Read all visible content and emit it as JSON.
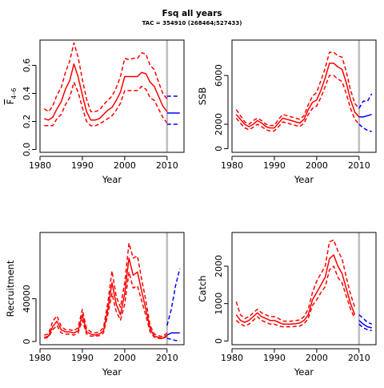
{
  "title": "Fsq all years",
  "subtitle": "TAC = 354910 (268464;527433)",
  "colors": {
    "historic": "#ff0000",
    "forecast": "#0000ff",
    "divider": "#bebebe"
  },
  "chart_data": [
    {
      "type": "line",
      "id": "f",
      "ylabel_main": "F",
      "ylabel_sub": "4–6",
      "xlabel": "Year",
      "xlim": [
        1980,
        2014
      ],
      "ylim": [
        -0.02,
        0.78
      ],
      "xticks": [
        1980,
        1990,
        2000,
        2010
      ],
      "yticks": [
        0,
        0.2,
        0.4,
        0.6
      ],
      "ytick_labels": [
        "0.0",
        "0.2",
        "0.4",
        "0.6"
      ],
      "divider_year": 2010,
      "historic": {
        "x": [
          1981,
          1982,
          1983,
          1984,
          1985,
          1986,
          1987,
          1988,
          1989,
          1990,
          1991,
          1992,
          1993,
          1994,
          1995,
          1996,
          1997,
          1998,
          1999,
          2000,
          2001,
          2002,
          2003,
          2004,
          2005,
          2006,
          2007,
          2008,
          2009,
          2010
        ],
        "mid": [
          0.22,
          0.21,
          0.23,
          0.29,
          0.34,
          0.43,
          0.49,
          0.61,
          0.52,
          0.39,
          0.27,
          0.21,
          0.21,
          0.22,
          0.25,
          0.28,
          0.3,
          0.35,
          0.41,
          0.52,
          0.52,
          0.52,
          0.52,
          0.55,
          0.54,
          0.48,
          0.45,
          0.38,
          0.31,
          0.27
        ],
        "lo": [
          0.17,
          0.17,
          0.17,
          0.22,
          0.25,
          0.32,
          0.37,
          0.48,
          0.41,
          0.3,
          0.2,
          0.17,
          0.17,
          0.18,
          0.2,
          0.22,
          0.24,
          0.28,
          0.33,
          0.42,
          0.42,
          0.42,
          0.42,
          0.45,
          0.43,
          0.37,
          0.35,
          0.29,
          0.23,
          0.19
        ],
        "hi": [
          0.29,
          0.27,
          0.31,
          0.39,
          0.44,
          0.55,
          0.63,
          0.76,
          0.66,
          0.5,
          0.36,
          0.27,
          0.27,
          0.28,
          0.32,
          0.35,
          0.38,
          0.44,
          0.52,
          0.65,
          0.64,
          0.65,
          0.65,
          0.69,
          0.68,
          0.6,
          0.57,
          0.48,
          0.4,
          0.36
        ]
      },
      "forecast": {
        "x": [
          2010,
          2011,
          2012,
          2013
        ],
        "mid": [
          0.26,
          0.26,
          0.26,
          0.26
        ],
        "lo": [
          0.18,
          0.18,
          0.18,
          0.18
        ],
        "hi": [
          0.38,
          0.38,
          0.38,
          0.38
        ]
      }
    },
    {
      "type": "line",
      "id": "ssb",
      "ylabel_main": "SSB",
      "ylabel_sub": "",
      "xlabel": "Year",
      "xlim": [
        1980,
        2014
      ],
      "ylim": [
        -300,
        8900
      ],
      "xticks": [
        1980,
        1990,
        2000,
        2010
      ],
      "yticks": [
        0,
        2000,
        6000
      ],
      "ytick_labels": [
        "0",
        "2000",
        "6000"
      ],
      "divider_year": 2010,
      "historic": {
        "x": [
          1981,
          1982,
          1983,
          1984,
          1985,
          1986,
          1987,
          1988,
          1989,
          1990,
          1991,
          1992,
          1993,
          1994,
          1995,
          1996,
          1997,
          1998,
          1999,
          2000,
          2001,
          2002,
          2003,
          2004,
          2005,
          2006,
          2007,
          2008,
          2009,
          2010
        ],
        "mid": [
          2800,
          2400,
          2000,
          1800,
          2000,
          2300,
          2100,
          1800,
          1700,
          1700,
          2100,
          2500,
          2400,
          2300,
          2200,
          2100,
          2400,
          3200,
          3800,
          4000,
          4800,
          5800,
          7000,
          7000,
          6700,
          6500,
          5400,
          4000,
          3000,
          2600
        ],
        "lo": [
          2500,
          2100,
          1700,
          1550,
          1750,
          2000,
          1800,
          1550,
          1450,
          1450,
          1800,
          2200,
          2100,
          2000,
          1900,
          1800,
          2100,
          2800,
          3300,
          3500,
          4200,
          5100,
          6000,
          6000,
          5700,
          5500,
          4500,
          3300,
          2400,
          2000
        ],
        "hi": [
          3200,
          2700,
          2200,
          2000,
          2300,
          2500,
          2300,
          2000,
          1900,
          1900,
          2400,
          2800,
          2700,
          2600,
          2500,
          2400,
          2700,
          3600,
          4300,
          4600,
          5600,
          6600,
          7900,
          7900,
          7600,
          7500,
          6300,
          4800,
          3700,
          3300
        ]
      },
      "forecast": {
        "x": [
          2010,
          2011,
          2012,
          2013
        ],
        "mid": [
          2600,
          2600,
          2700,
          2800
        ],
        "lo": [
          2000,
          1700,
          1500,
          1400
        ],
        "hi": [
          3300,
          3900,
          3900,
          4500
        ]
      }
    },
    {
      "type": "line",
      "id": "recruitment",
      "ylabel_main": "Recruitment",
      "ylabel_sub": "",
      "xlabel": "Year",
      "xlim": [
        1980,
        2014
      ],
      "ylim": [
        -3000,
        102000
      ],
      "xticks": [
        1980,
        1990,
        2000,
        2010
      ],
      "yticks": [
        0,
        40000
      ],
      "ytick_labels": [
        "0",
        "40000"
      ],
      "divider_year": 2010,
      "historic": {
        "x": [
          1981,
          1982,
          1983,
          1984,
          1985,
          1986,
          1987,
          1988,
          1989,
          1990,
          1991,
          1992,
          1993,
          1994,
          1995,
          1996,
          1997,
          1998,
          1999,
          2000,
          2001,
          2002,
          2003,
          2004,
          2005,
          2006,
          2007,
          2008,
          2009,
          2010
        ],
        "mid": [
          4000,
          5000,
          14000,
          19000,
          11000,
          9000,
          9000,
          8000,
          10000,
          25000,
          9000,
          7000,
          6000,
          7000,
          10000,
          30000,
          55000,
          35000,
          25000,
          45000,
          78000,
          62000,
          65000,
          47000,
          30000,
          12000,
          5000,
          4000,
          3000,
          6000
        ],
        "lo": [
          3000,
          4000,
          11000,
          15000,
          8000,
          7000,
          7000,
          6000,
          8000,
          20000,
          7000,
          5000,
          5000,
          5500,
          8000,
          25000,
          45000,
          28000,
          20000,
          35000,
          65000,
          50000,
          52000,
          38000,
          24000,
          9000,
          4000,
          3000,
          2500,
          5000
        ],
        "hi": [
          6000,
          7000,
          19000,
          24000,
          14000,
          11000,
          11000,
          10000,
          13000,
          30000,
          12000,
          9000,
          8000,
          9000,
          13000,
          36000,
          66000,
          42000,
          32000,
          55000,
          92000,
          78000,
          80000,
          58000,
          38000,
          15000,
          7000,
          5500,
          4500,
          8000
        ]
      },
      "forecast": {
        "x": [
          2010,
          2011,
          2012,
          2013
        ],
        "mid": [
          6000,
          8000,
          8000,
          8000
        ],
        "lo": [
          3000,
          2000,
          1000,
          500
        ],
        "hi": [
          15000,
          30000,
          52000,
          68000
        ]
      }
    },
    {
      "type": "line",
      "id": "catch",
      "ylabel_main": "Catch",
      "ylabel_sub": "",
      "xlabel": "Year",
      "xlim": [
        1980,
        2014
      ],
      "ylim": [
        -100,
        2900
      ],
      "xticks": [
        1980,
        1990,
        2000,
        2010
      ],
      "yticks": [
        0,
        1000,
        2000
      ],
      "ytick_labels": [
        "0",
        "1000",
        "2000"
      ],
      "divider_year": 2010,
      "historic": {
        "x": [
          1981,
          1982,
          1983,
          1984,
          1985,
          1986,
          1987,
          1988,
          1989,
          1990,
          1991,
          1992,
          1993,
          1994,
          1995,
          1996,
          1997,
          1998,
          1999,
          2000,
          2001,
          2002,
          2003,
          2004,
          2005,
          2006,
          2007,
          2008,
          2009
        ],
        "mid": [
          700,
          550,
          500,
          550,
          650,
          750,
          650,
          600,
          550,
          550,
          500,
          450,
          450,
          450,
          460,
          480,
          550,
          700,
          1100,
          1300,
          1500,
          1700,
          2200,
          2300,
          2000,
          1800,
          1400,
          1000,
          700
        ],
        "lo": [
          550,
          450,
          400,
          450,
          550,
          650,
          550,
          500,
          450,
          450,
          400,
          380,
          380,
          380,
          390,
          400,
          460,
          600,
          950,
          1100,
          1300,
          1450,
          1900,
          2000,
          1700,
          1550,
          1200,
          850,
          600
        ],
        "hi": [
          1050,
          700,
          600,
          650,
          750,
          850,
          750,
          700,
          650,
          650,
          600,
          530,
          530,
          530,
          550,
          560,
          650,
          850,
          1300,
          1600,
          1800,
          2000,
          2650,
          2700,
          2400,
          2200,
          1700,
          1250,
          900
        ]
      },
      "forecast": {
        "x": [
          2010,
          2011,
          2012,
          2013
        ],
        "mid": [
          550,
          450,
          380,
          350
        ],
        "lo": [
          450,
          350,
          300,
          280
        ],
        "hi": [
          700,
          600,
          500,
          450
        ]
      }
    }
  ]
}
